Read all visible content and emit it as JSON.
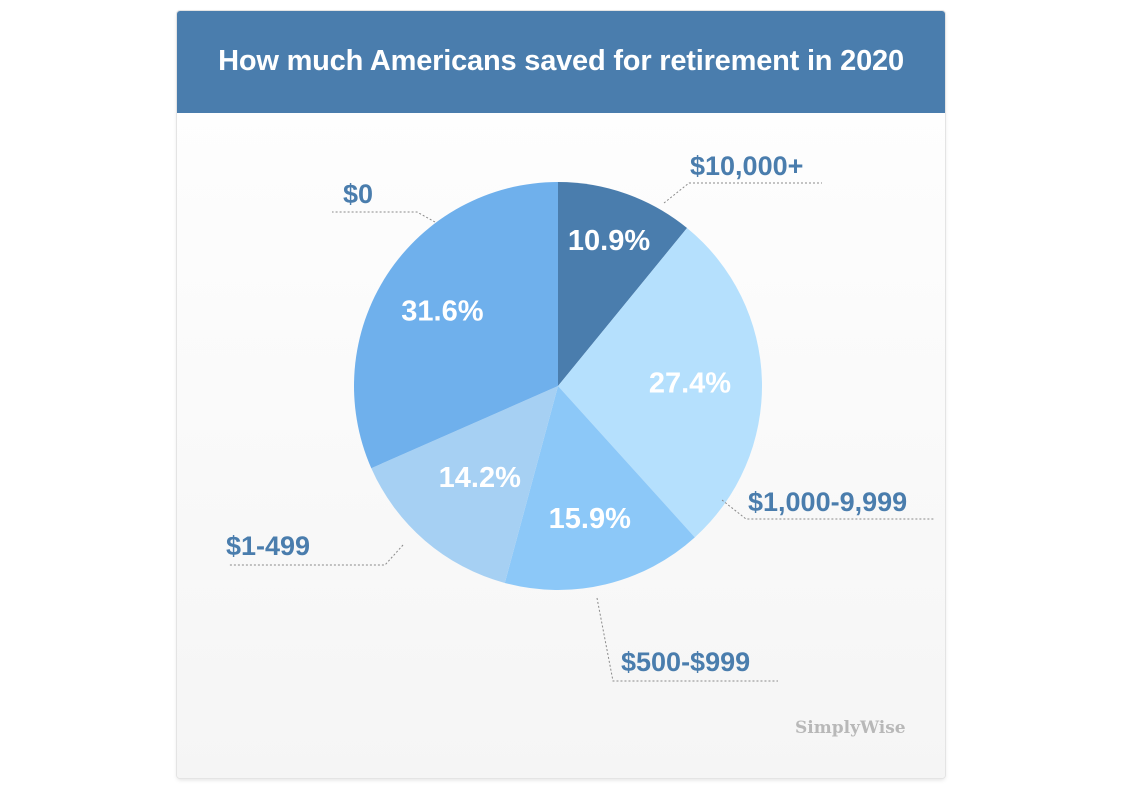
{
  "brand": "SimplyWise",
  "colors": {
    "header": "#4a7dad",
    "label": "#4a7dad",
    "slices": [
      "#4a7dad",
      "#b5e0fd",
      "#8cc8f8",
      "#a6d0f3",
      "#6fb0ec"
    ]
  },
  "chart_data": {
    "type": "pie",
    "title": "How much Americans saved for retirement in 2020",
    "start_angle": "12 o'clock",
    "direction": "clockwise",
    "slices": [
      {
        "label": "$10,000+",
        "value": 10.9,
        "value_label": "10.9%"
      },
      {
        "label": "$1,000-9,999",
        "value": 27.4,
        "value_label": "27.4%"
      },
      {
        "label": "$500-$999",
        "value": 15.9,
        "value_label": "15.9%"
      },
      {
        "label": "$1-499",
        "value": 14.2,
        "value_label": "14.2%"
      },
      {
        "label": "$0",
        "value": 31.6,
        "value_label": "31.6%"
      }
    ]
  }
}
